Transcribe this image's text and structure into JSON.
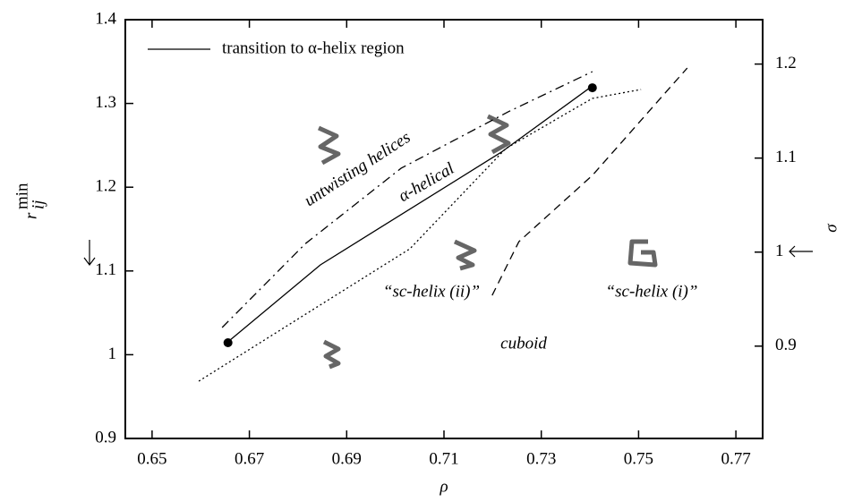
{
  "chart_data": {
    "type": "line",
    "xlabel": "ρ",
    "ylabel": {
      "base": "r",
      "sup": "min",
      "sub": "ij"
    },
    "y2label": "σ",
    "xlim": [
      0.6445,
      0.7755
    ],
    "xticks": [
      0.65,
      0.67,
      0.69,
      0.71,
      0.73,
      0.75,
      0.77
    ],
    "ylim": [
      0.9,
      1.4
    ],
    "yticks": [
      0.9,
      1,
      1.1,
      1.2,
      1.3,
      1.4
    ],
    "y2lim": [
      0.8018,
      1.2472
    ],
    "y2ticks": [
      0.9,
      1,
      1.1,
      1.2
    ],
    "legend": "upper left",
    "series": [
      {
        "name": "transition to α-helix region",
        "color": "#000000",
        "dash": "solid",
        "x": [
          0.6656,
          0.6846,
          0.7218,
          0.7405
        ],
        "values": [
          1.0154,
          1.1073,
          1.2419,
          1.3209
        ]
      },
      {
        "color": "#000000",
        "dash": "dashdot",
        "x": [
          0.6644,
          0.6815,
          0.7012,
          0.7232,
          0.7405
        ],
        "values": [
          1.0325,
          1.1325,
          1.2227,
          1.29,
          1.338
        ]
      },
      {
        "color": "#000000",
        "dash": "dotted",
        "x": [
          0.6596,
          0.703,
          0.7227,
          0.7405,
          0.7505
        ],
        "values": [
          0.9684,
          1.1265,
          1.2462,
          1.306,
          1.3167
        ]
      },
      {
        "color": "#000000",
        "dash": "dashed",
        "x": [
          0.7199,
          0.7254,
          0.7405,
          0.76
        ],
        "values": [
          1.0709,
          1.135,
          1.2141,
          1.3423
        ]
      },
      {
        "color": "#000000",
        "dash": "none",
        "marker": "dot",
        "x": [
          0.6656,
          0.7405
        ],
        "values": [
          1.0143,
          1.3187
        ]
      }
    ],
    "annotations": [
      "untwisting helices",
      "α-helical",
      "“sc-helix (ii)”",
      "“sc-helix (i)”",
      "cuboid"
    ]
  }
}
